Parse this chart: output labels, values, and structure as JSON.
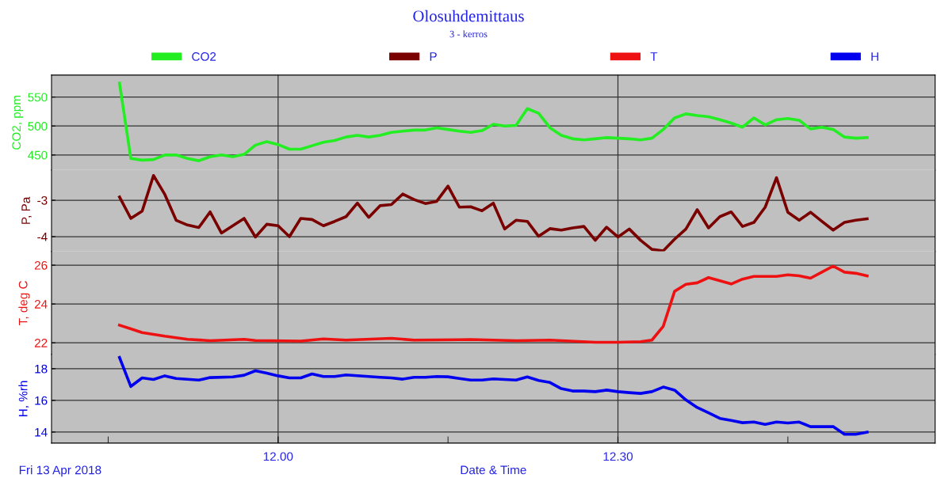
{
  "chart_data": [
    {
      "type": "line",
      "title": "Olosuhdemittaus",
      "subtitle": "3 - kerros",
      "ylabel": "CO2, ppm",
      "legend": "top",
      "grid": true,
      "tick_labels": "y",
      "xlim": [
        "2018-04-13T11:40",
        "2018-04-13T12:58"
      ],
      "xticks": [
        {
          "value": "2018-04-13T12:00",
          "label": null
        },
        {
          "value": "2018-04-13T12:30",
          "label": null
        }
      ],
      "ylim": [
        424,
        588
      ],
      "yticks": [
        450,
        500,
        550
      ],
      "x": [
        "2018-04-13T11:46",
        "2018-04-13T11:47",
        "2018-04-13T11:48",
        "2018-04-13T11:49",
        "2018-04-13T11:50",
        "2018-04-13T11:51",
        "2018-04-13T11:52",
        "2018-04-13T11:53",
        "2018-04-13T11:54",
        "2018-04-13T11:55",
        "2018-04-13T11:56",
        "2018-04-13T11:57",
        "2018-04-13T11:58",
        "2018-04-13T11:59",
        "2018-04-13T12:00",
        "2018-04-13T12:01",
        "2018-04-13T12:02",
        "2018-04-13T12:03",
        "2018-04-13T12:04",
        "2018-04-13T12:05",
        "2018-04-13T12:06",
        "2018-04-13T12:07",
        "2018-04-13T12:08",
        "2018-04-13T12:09",
        "2018-04-13T12:10",
        "2018-04-13T12:11",
        "2018-04-13T12:12",
        "2018-04-13T12:13",
        "2018-04-13T12:14",
        "2018-04-13T12:15",
        "2018-04-13T12:16",
        "2018-04-13T12:17",
        "2018-04-13T12:18",
        "2018-04-13T12:19",
        "2018-04-13T12:20",
        "2018-04-13T12:21",
        "2018-04-13T12:22",
        "2018-04-13T12:23",
        "2018-04-13T12:24",
        "2018-04-13T12:25",
        "2018-04-13T12:26",
        "2018-04-13T12:27",
        "2018-04-13T12:28",
        "2018-04-13T12:29",
        "2018-04-13T12:30",
        "2018-04-13T12:31",
        "2018-04-13T12:32",
        "2018-04-13T12:33",
        "2018-04-13T12:34",
        "2018-04-13T12:35",
        "2018-04-13T12:36",
        "2018-04-13T12:37",
        "2018-04-13T12:38",
        "2018-04-13T12:39",
        "2018-04-13T12:40",
        "2018-04-13T12:41",
        "2018-04-13T12:42",
        "2018-04-13T12:43",
        "2018-04-13T12:44",
        "2018-04-13T12:45",
        "2018-04-13T12:46",
        "2018-04-13T12:47",
        "2018-04-13T12:48",
        "2018-04-13T12:49",
        "2018-04-13T12:50",
        "2018-04-13T12:51",
        "2018-04-13T12:52"
      ],
      "series": [
        {
          "name": "CO2",
          "color": "#22ee22",
          "values": [
            574,
            444,
            441,
            442,
            450,
            450,
            444,
            440,
            447,
            450,
            447,
            451,
            467,
            473,
            468,
            460,
            460,
            466,
            472,
            475,
            481,
            484,
            481,
            484,
            489,
            491,
            493,
            493,
            497,
            494,
            491,
            489,
            492,
            503,
            500,
            501,
            530,
            522,
            497,
            484,
            478,
            476,
            478,
            480,
            479,
            478,
            476,
            479,
            494,
            514,
            521,
            518,
            516,
            511,
            505,
            498,
            514,
            502,
            511,
            513,
            510,
            495,
            498,
            494,
            481,
            479,
            480
          ]
        }
      ]
    },
    {
      "type": "line",
      "ylabel": "P, Pa",
      "legend": "top",
      "grid": true,
      "tick_labels": "y",
      "xlim": [
        "2018-04-13T11:40",
        "2018-04-13T12:58"
      ],
      "xticks": [
        {
          "value": "2018-04-13T12:00",
          "label": null
        },
        {
          "value": "2018-04-13T12:30",
          "label": null
        }
      ],
      "ylim": [
        -4.41,
        -2.17
      ],
      "yticks": [
        {
          "value": -4,
          "label": "-4"
        },
        {
          "value": -3,
          "label": "-3"
        }
      ],
      "x": [
        "2018-04-13T11:46",
        "2018-04-13T11:47",
        "2018-04-13T11:48",
        "2018-04-13T11:49",
        "2018-04-13T11:50",
        "2018-04-13T11:51",
        "2018-04-13T11:52",
        "2018-04-13T11:53",
        "2018-04-13T11:54",
        "2018-04-13T11:55",
        "2018-04-13T11:56",
        "2018-04-13T11:57",
        "2018-04-13T11:58",
        "2018-04-13T11:59",
        "2018-04-13T12:00",
        "2018-04-13T12:01",
        "2018-04-13T12:02",
        "2018-04-13T12:03",
        "2018-04-13T12:04",
        "2018-04-13T12:05",
        "2018-04-13T12:06",
        "2018-04-13T12:07",
        "2018-04-13T12:08",
        "2018-04-13T12:09",
        "2018-04-13T12:10",
        "2018-04-13T12:11",
        "2018-04-13T12:12",
        "2018-04-13T12:13",
        "2018-04-13T12:14",
        "2018-04-13T12:15",
        "2018-04-13T12:16",
        "2018-04-13T12:17",
        "2018-04-13T12:18",
        "2018-04-13T12:19",
        "2018-04-13T12:20",
        "2018-04-13T12:21",
        "2018-04-13T12:22",
        "2018-04-13T12:23",
        "2018-04-13T12:24",
        "2018-04-13T12:25",
        "2018-04-13T12:26",
        "2018-04-13T12:27",
        "2018-04-13T12:28",
        "2018-04-13T12:29",
        "2018-04-13T12:30",
        "2018-04-13T12:31",
        "2018-04-13T12:32",
        "2018-04-13T12:33",
        "2018-04-13T12:34",
        "2018-04-13T12:35",
        "2018-04-13T12:36",
        "2018-04-13T12:37",
        "2018-04-13T12:38",
        "2018-04-13T12:39",
        "2018-04-13T12:40",
        "2018-04-13T12:41",
        "2018-04-13T12:42",
        "2018-04-13T12:43",
        "2018-04-13T12:44",
        "2018-04-13T12:45",
        "2018-04-13T12:46",
        "2018-04-13T12:47",
        "2018-04-13T12:48",
        "2018-04-13T12:49",
        "2018-04-13T12:50",
        "2018-04-13T12:51",
        "2018-04-13T12:52"
      ],
      "series": [
        {
          "name": "P",
          "color": "#7a0000",
          "values": [
            -2.91,
            -3.5,
            -3.3,
            -2.32,
            -2.84,
            -3.55,
            -3.68,
            -3.75,
            -3.32,
            -3.9,
            -3.7,
            -3.5,
            -4.01,
            -3.66,
            -3.7,
            -4.0,
            -3.5,
            -3.53,
            -3.7,
            -3.58,
            -3.45,
            -3.08,
            -3.47,
            -3.15,
            -3.12,
            -2.83,
            -2.98,
            -3.09,
            -3.03,
            -2.61,
            -3.19,
            -3.18,
            -3.29,
            -3.08,
            -3.79,
            -3.55,
            -3.58,
            -3.99,
            -3.78,
            -3.82,
            -3.76,
            -3.72,
            -4.1,
            -3.74,
            -4.01,
            -3.79,
            -4.1,
            -4.35,
            -4.39,
            -4.07,
            -3.79,
            -3.26,
            -3.76,
            -3.45,
            -3.32,
            -3.72,
            -3.61,
            -3.19,
            -2.38,
            -3.33,
            -3.55,
            -3.33,
            -3.58,
            -3.82,
            -3.61,
            -3.55,
            -3.51
          ]
        }
      ]
    },
    {
      "type": "line",
      "ylabel": "T, deg C",
      "legend": "top",
      "grid": true,
      "tick_labels": "y",
      "xlim": [
        "2018-04-13T11:40",
        "2018-04-13T12:58"
      ],
      "xticks": [
        {
          "value": "2018-04-13T12:00",
          "label": null
        },
        {
          "value": "2018-04-13T12:30",
          "label": null
        }
      ],
      "ylim": [
        21.4,
        26.7
      ],
      "yticks": [
        22,
        24,
        26
      ],
      "x": [
        "2018-04-13T11:46",
        "2018-04-13T11:47",
        "2018-04-13T11:48",
        "2018-04-13T11:50",
        "2018-04-13T11:52",
        "2018-04-13T11:54",
        "2018-04-13T11:57",
        "2018-04-13T11:58",
        "2018-04-13T12:02",
        "2018-04-13T12:04",
        "2018-04-13T12:06",
        "2018-04-13T12:10",
        "2018-04-13T12:12",
        "2018-04-13T12:16",
        "2018-04-13T12:17",
        "2018-04-13T12:21",
        "2018-04-13T12:24",
        "2018-04-13T12:28",
        "2018-04-13T12:30",
        "2018-04-13T12:32",
        "2018-04-13T12:33",
        "2018-04-13T12:34",
        "2018-04-13T12:35",
        "2018-04-13T12:36",
        "2018-04-13T12:37",
        "2018-04-13T12:38",
        "2018-04-13T12:39",
        "2018-04-13T12:40",
        "2018-04-13T12:41",
        "2018-04-13T12:42",
        "2018-04-13T12:44",
        "2018-04-13T12:45",
        "2018-04-13T12:46",
        "2018-04-13T12:47",
        "2018-04-13T12:48",
        "2018-04-13T12:49",
        "2018-04-13T12:50",
        "2018-04-13T12:51",
        "2018-04-13T12:52"
      ],
      "series": [
        {
          "name": "T",
          "color": "#ee1111",
          "values": [
            22.91,
            22.72,
            22.53,
            22.34,
            22.18,
            22.11,
            22.18,
            22.12,
            22.09,
            22.2,
            22.14,
            22.23,
            22.14,
            22.16,
            22.17,
            22.11,
            22.14,
            22.03,
            22.03,
            22.06,
            22.14,
            22.85,
            24.65,
            25.01,
            25.09,
            25.36,
            25.2,
            25.03,
            25.28,
            25.42,
            25.42,
            25.5,
            25.45,
            25.33,
            25.64,
            25.95,
            25.64,
            25.58,
            25.45
          ]
        }
      ]
    },
    {
      "type": "line",
      "ylabel": "H, %rh",
      "xlabel": "Date & Time",
      "annotations": [
        "Fri 13 Apr 2018"
      ],
      "legend": "top",
      "grid": true,
      "xlim": [
        "2018-04-13T11:40",
        "2018-04-13T12:58"
      ],
      "xticks": [
        {
          "value": "2018-04-13T11:45",
          "label": null
        },
        {
          "value": "2018-04-13T12:00",
          "label": "12.00"
        },
        {
          "value": "2018-04-13T12:15",
          "label": null
        },
        {
          "value": "2018-04-13T12:30",
          "label": "12.30"
        },
        {
          "value": "2018-04-13T12:45",
          "label": null
        }
      ],
      "ylim": [
        13.3,
        18.9
      ],
      "yticks": [
        14,
        16,
        18
      ],
      "x": [
        "2018-04-13T11:46",
        "2018-04-13T11:47",
        "2018-04-13T11:48",
        "2018-04-13T11:49",
        "2018-04-13T11:50",
        "2018-04-13T11:51",
        "2018-04-13T11:53",
        "2018-04-13T11:54",
        "2018-04-13T11:56",
        "2018-04-13T11:57",
        "2018-04-13T11:58",
        "2018-04-13T11:59",
        "2018-04-13T12:00",
        "2018-04-13T12:01",
        "2018-04-13T12:02",
        "2018-04-13T12:03",
        "2018-04-13T12:04",
        "2018-04-13T12:05",
        "2018-04-13T12:06",
        "2018-04-13T12:08",
        "2018-04-13T12:09",
        "2018-04-13T12:10",
        "2018-04-13T12:11",
        "2018-04-13T12:12",
        "2018-04-13T12:13",
        "2018-04-13T12:14",
        "2018-04-13T12:15",
        "2018-04-13T12:16",
        "2018-04-13T12:17",
        "2018-04-13T12:18",
        "2018-04-13T12:19",
        "2018-04-13T12:21",
        "2018-04-13T12:22",
        "2018-04-13T12:23",
        "2018-04-13T12:24",
        "2018-04-13T12:25",
        "2018-04-13T12:26",
        "2018-04-13T12:27",
        "2018-04-13T12:28",
        "2018-04-13T12:29",
        "2018-04-13T12:30",
        "2018-04-13T12:31",
        "2018-04-13T12:32",
        "2018-04-13T12:33",
        "2018-04-13T12:34",
        "2018-04-13T12:35",
        "2018-04-13T12:36",
        "2018-04-13T12:37",
        "2018-04-13T12:38",
        "2018-04-13T12:39",
        "2018-04-13T12:40",
        "2018-04-13T12:41",
        "2018-04-13T12:42",
        "2018-04-13T12:43",
        "2018-04-13T12:44",
        "2018-04-13T12:45",
        "2018-04-13T12:46",
        "2018-04-13T12:47",
        "2018-04-13T12:49",
        "2018-04-13T12:50",
        "2018-04-13T12:51",
        "2018-04-13T12:52"
      ],
      "series": [
        {
          "name": "H",
          "color": "#0000ee",
          "values": [
            18.71,
            16.88,
            17.42,
            17.32,
            17.55,
            17.38,
            17.28,
            17.44,
            17.48,
            17.59,
            17.87,
            17.72,
            17.55,
            17.42,
            17.42,
            17.67,
            17.51,
            17.51,
            17.61,
            17.51,
            17.46,
            17.42,
            17.34,
            17.46,
            17.46,
            17.51,
            17.49,
            17.38,
            17.28,
            17.28,
            17.36,
            17.28,
            17.48,
            17.26,
            17.13,
            16.74,
            16.59,
            16.59,
            16.55,
            16.65,
            16.55,
            16.49,
            16.44,
            16.55,
            16.84,
            16.65,
            16.03,
            15.55,
            15.21,
            14.86,
            14.73,
            14.59,
            14.63,
            14.48,
            14.63,
            14.57,
            14.63,
            14.34,
            14.34,
            13.86,
            13.86,
            13.99
          ]
        }
      ]
    }
  ]
}
